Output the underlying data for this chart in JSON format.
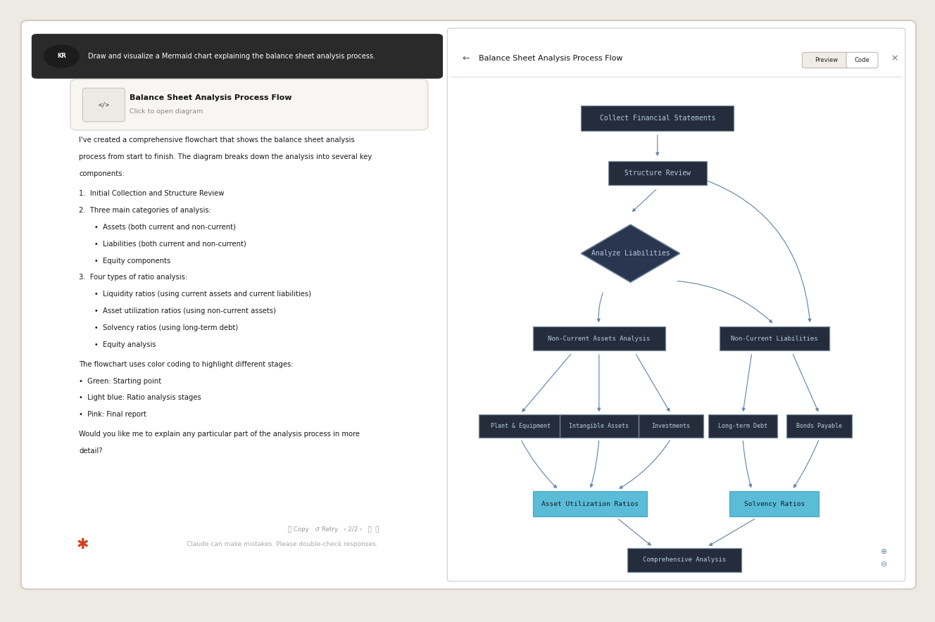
{
  "bg_outer": "#edeae4",
  "bg_window": "#ffffff",
  "bg_diagram": "#1e2433",
  "title_bar_text": "Balance Sheet Analysis Process Flow",
  "prompt_text": "Draw and visualize a Mermaid chart explaining the balance sheet analysis process.",
  "prompt_initials": "KR",
  "card_title": "Balance Sheet Analysis Process Flow",
  "card_subtitle": "Click to open diagram",
  "body_lines": [
    "I've created a comprehensive flowchart that shows the balance sheet analysis",
    "process from start to finish. The diagram breaks down the analysis into several key",
    "components:"
  ],
  "list_lines": [
    "1.  Initial Collection and Structure Review",
    "2.  Three main categories of analysis:",
    "       •  Assets (both current and non-current)",
    "       •  Liabilities (both current and non-current)",
    "       •  Equity components",
    "3.  Four types of ratio analysis:",
    "       •  Liquidity ratios (using current assets and current liabilities)",
    "       •  Asset utilization ratios (using non-current assets)",
    "       •  Solvency ratios (using long-term debt)",
    "       •  Equity analysis"
  ],
  "color_text": "The flowchart uses color coding to highlight different stages:",
  "color_lines": [
    "•  Green: Starting point",
    "•  Light blue: Ratio analysis stages",
    "•  Pink: Final report"
  ],
  "closing_lines": [
    "Would you like me to explain any particular part of the analysis process in more",
    "detail?"
  ],
  "disclaimer": "Claude can make mistakes. Please double-check responses.",
  "node_border": "#7a8fa0",
  "node_bg": "#252d3d",
  "node_text": "#b8ccd8",
  "diamond_bg": "#2a3550",
  "arrow_color": "#6688aa",
  "highlight_blue_bg": "#5abcd6",
  "highlight_blue_text": "#0d1f2a",
  "ca_bg": "#252d3d",
  "ca_text": "#b8ccd8"
}
